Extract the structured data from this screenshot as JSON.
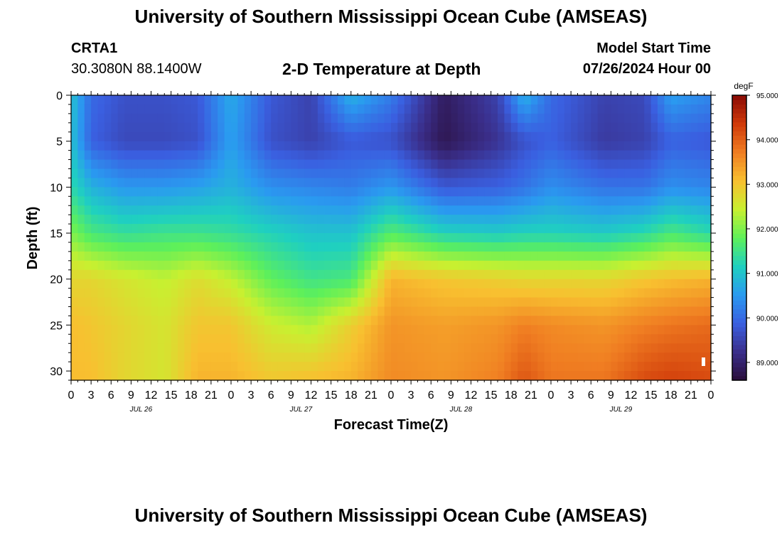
{
  "page": {
    "title": "University of Southern Mississippi Ocean Cube (AMSEAS)",
    "footer_title": "University of Southern Mississippi Ocean Cube (AMSEAS)",
    "station_id": "CRTA1",
    "coordinates": "30.3080N  88.1400W",
    "subtitle": "2-D Temperature at Depth",
    "model_start_label": "Model Start Time",
    "model_start_value": "07/26/2024 Hour 00"
  },
  "chart_data": {
    "type": "heatmap",
    "title": "2-D Temperature at Depth",
    "xlabel": "Forecast Time(Z)",
    "ylabel": "Depth (ft)",
    "x_tick_labels": [
      "0",
      "3",
      "6",
      "9",
      "12",
      "15",
      "18",
      "21",
      "0",
      "3",
      "6",
      "9",
      "12",
      "15",
      "18",
      "21",
      "0",
      "3",
      "6",
      "9",
      "12",
      "15",
      "18",
      "21",
      "0",
      "3",
      "6",
      "9",
      "12",
      "15",
      "18",
      "21",
      "0"
    ],
    "x_range_hours": [
      0,
      96
    ],
    "day_labels": [
      {
        "label": "JUL 26",
        "hour": 10.5
      },
      {
        "label": "JUL 27",
        "hour": 34.5
      },
      {
        "label": "JUL 28",
        "hour": 58.5
      },
      {
        "label": "JUL 29",
        "hour": 82.5
      }
    ],
    "y_ticks": [
      0,
      5,
      10,
      15,
      20,
      25,
      30
    ],
    "y_tick_labels": [
      "0",
      "5",
      "10",
      "15",
      "20",
      "25",
      "30"
    ],
    "y_range_ft": [
      0,
      31
    ],
    "colorbar": {
      "units": "degF",
      "range": [
        88.6,
        95.0
      ],
      "ticks": [
        89.0,
        90.0,
        91.0,
        92.0,
        93.0,
        94.0,
        95.0
      ],
      "tick_labels": [
        "89.000",
        "90.000",
        "91.000",
        "92.000",
        "93.000",
        "94.000",
        "95.000"
      ],
      "colors": [
        "#2a0e3a",
        "#3a2e8a",
        "#3a5fe0",
        "#2a9af0",
        "#1fd0c0",
        "#5ef05a",
        "#c8f030",
        "#f8c030",
        "#f07e22",
        "#d03a0a",
        "#8a0a05"
      ]
    },
    "field_model": {
      "depth_ft": [
        0,
        5,
        10,
        15,
        20,
        25,
        31
      ],
      "temperature_degF_by_hour": [
        {
          "hour": 0,
          "values": [
            91.0,
            91.0,
            91.3,
            92.0,
            92.8,
            93.1,
            93.1
          ]
        },
        {
          "hour": 3,
          "values": [
            90.0,
            89.9,
            90.8,
            91.6,
            92.8,
            93.0,
            93.1
          ]
        },
        {
          "hour": 8,
          "values": [
            89.7,
            89.6,
            90.5,
            91.4,
            92.6,
            92.8,
            92.8
          ]
        },
        {
          "hour": 14,
          "values": [
            89.7,
            89.6,
            90.5,
            91.5,
            92.4,
            92.6,
            92.6
          ]
        },
        {
          "hour": 19,
          "values": [
            89.8,
            89.7,
            90.6,
            91.5,
            92.7,
            93.0,
            93.2
          ]
        },
        {
          "hour": 24,
          "values": [
            90.7,
            90.6,
            90.8,
            91.4,
            92.4,
            93.0,
            93.2
          ]
        },
        {
          "hour": 30,
          "values": [
            89.8,
            89.7,
            90.4,
            91.2,
            91.8,
            92.5,
            93.0
          ]
        },
        {
          "hour": 36,
          "values": [
            89.5,
            89.5,
            90.3,
            91.0,
            91.5,
            92.3,
            93.1
          ]
        },
        {
          "hour": 42,
          "values": [
            90.8,
            89.8,
            90.2,
            91.0,
            91.6,
            92.9,
            93.2
          ]
        },
        {
          "hour": 48,
          "values": [
            90.2,
            89.7,
            90.5,
            91.7,
            93.2,
            93.5,
            93.6
          ]
        },
        {
          "hour": 56,
          "values": [
            88.9,
            88.8,
            89.8,
            91.2,
            93.0,
            93.4,
            93.5
          ]
        },
        {
          "hour": 64,
          "values": [
            89.5,
            89.3,
            89.9,
            91.1,
            92.9,
            93.5,
            93.7
          ]
        },
        {
          "hour": 68,
          "values": [
            90.8,
            89.7,
            90.1,
            91.2,
            92.8,
            93.7,
            94.1
          ]
        },
        {
          "hour": 72,
          "values": [
            90.0,
            89.9,
            90.4,
            91.2,
            92.8,
            93.6,
            93.8
          ]
        },
        {
          "hour": 80,
          "values": [
            89.5,
            89.4,
            90.1,
            91.1,
            92.8,
            93.5,
            93.8
          ]
        },
        {
          "hour": 86,
          "values": [
            89.6,
            89.5,
            90.1,
            91.3,
            93.0,
            93.7,
            94.2
          ]
        },
        {
          "hour": 90,
          "values": [
            90.6,
            89.9,
            90.4,
            91.6,
            93.1,
            93.8,
            94.3
          ]
        },
        {
          "hour": 96,
          "values": [
            90.3,
            89.8,
            90.3,
            91.3,
            93.2,
            93.9,
            94.2
          ]
        }
      ]
    }
  }
}
